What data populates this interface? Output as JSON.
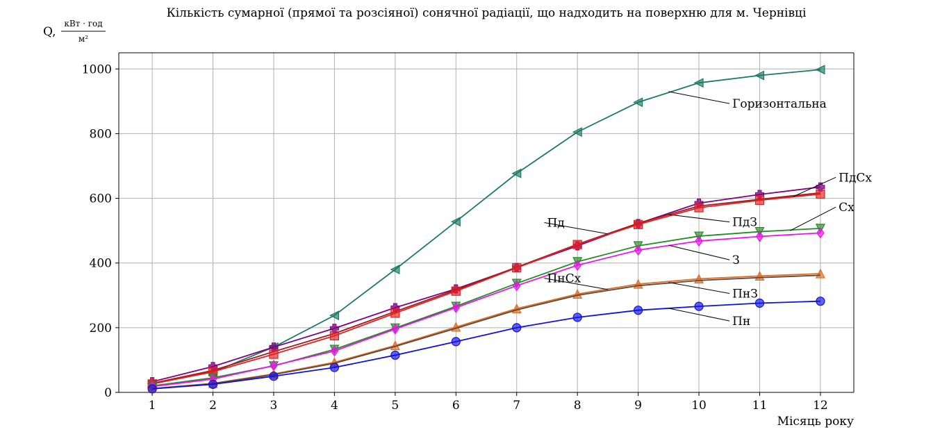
{
  "chart_data": {
    "type": "line",
    "title": "Кількість сумарної (прямої та розсіяної) сонячної радіації, що надходить на поверхню для м. Чернівці",
    "ylabel": {
      "symbol": "Q,",
      "unit_numerator": "кВт · год",
      "unit_denominator": "м²"
    },
    "xlabel": "Місяць року",
    "x": [
      1,
      2,
      3,
      4,
      5,
      6,
      7,
      8,
      9,
      10,
      11,
      12
    ],
    "xticks": [
      "1",
      "2",
      "3",
      "4",
      "5",
      "6",
      "7",
      "8",
      "9",
      "10",
      "11",
      "12"
    ],
    "xlim": [
      0.45,
      12.55
    ],
    "ylim": [
      0,
      1050
    ],
    "yticks": [
      0,
      200,
      400,
      600,
      800,
      1000
    ],
    "ytick_labels": [
      "0",
      "200",
      "400",
      "600",
      "800",
      "1000"
    ],
    "grid": true,
    "series": [
      {
        "name": "Горизонтальна",
        "color": "#1b7a63",
        "marker": "triangle-left",
        "values": [
          27,
          63,
          140,
          238,
          380,
          528,
          677,
          805,
          897,
          957,
          980,
          998
        ]
      },
      {
        "name": "ПдСх",
        "color": "#800080",
        "marker": "plus",
        "values": [
          33,
          80,
          140,
          198,
          262,
          320,
          386,
          453,
          522,
          585,
          612,
          635
        ]
      },
      {
        "name": "Пд",
        "color": "#a01818",
        "marker": "none",
        "values": [
          28,
          68,
          126,
          182,
          250,
          317,
          387,
          458,
          523,
          576,
          597,
          617
        ]
      },
      {
        "name": "ПдЗ",
        "color": "#e02020",
        "marker": "square",
        "values": [
          26,
          64,
          118,
          175,
          245,
          313,
          385,
          457,
          519,
          571,
          594,
          613
        ]
      },
      {
        "name": "Сх",
        "color": "#228b22",
        "marker": "triangle-down",
        "values": [
          20,
          45,
          82,
          133,
          199,
          266,
          337,
          404,
          453,
          483,
          497,
          507
        ]
      },
      {
        "name": "З",
        "color": "#ee11ee",
        "marker": "diamond",
        "values": [
          18,
          41,
          83,
          128,
          196,
          262,
          330,
          393,
          440,
          468,
          482,
          493
        ]
      },
      {
        "name": "ПнСх",
        "color": "#e06b1e",
        "marker": "triangle-up",
        "values": [
          12,
          28,
          57,
          93,
          145,
          202,
          259,
          304,
          335,
          351,
          360,
          367
        ]
      },
      {
        "name": "ПнЗ",
        "color": "#5a4a40",
        "marker": "none",
        "values": [
          11,
          27,
          55,
          90,
          142,
          198,
          255,
          300,
          330,
          346,
          355,
          362
        ]
      },
      {
        "name": "Пн",
        "color": "#1010e0",
        "marker": "circle",
        "values": [
          11,
          25,
          50,
          77,
          115,
          157,
          200,
          232,
          254,
          266,
          276,
          282
        ]
      }
    ],
    "annotations": [
      {
        "text": "Горизонтальна",
        "series": "Горизонтальна",
        "point_x": 9.5,
        "point_y": 930,
        "text_x": 10.55,
        "text_y": 880,
        "align": "start"
      },
      {
        "text": "ПдСх",
        "series": "ПдСх",
        "point_x": 11.55,
        "point_y": 605,
        "text_x": 12.3,
        "text_y": 652,
        "align": "start"
      },
      {
        "text": "Сх",
        "series": "Сх",
        "point_x": 11.5,
        "point_y": 500,
        "text_x": 12.3,
        "text_y": 560,
        "align": "start"
      },
      {
        "text": "Пд",
        "series": "Пд",
        "point_x": 8.5,
        "point_y": 490,
        "text_x": 7.5,
        "text_y": 512,
        "align": "start"
      },
      {
        "text": "ПдЗ",
        "series": "ПдЗ",
        "point_x": 9.5,
        "point_y": 550,
        "text_x": 10.55,
        "text_y": 514,
        "align": "start"
      },
      {
        "text": "З",
        "series": "З",
        "point_x": 9.5,
        "point_y": 455,
        "text_x": 10.55,
        "text_y": 397,
        "align": "start"
      },
      {
        "text": "ПнСх",
        "series": "ПнСх",
        "point_x": 8.5,
        "point_y": 318,
        "text_x": 7.5,
        "text_y": 340,
        "align": "start"
      },
      {
        "text": "ПнЗ",
        "series": "ПнЗ",
        "point_x": 9.5,
        "point_y": 340,
        "text_x": 10.55,
        "text_y": 293,
        "align": "start"
      },
      {
        "text": "Пн",
        "series": "Пн",
        "point_x": 9.5,
        "point_y": 260,
        "text_x": 10.55,
        "text_y": 208,
        "align": "start"
      }
    ]
  }
}
